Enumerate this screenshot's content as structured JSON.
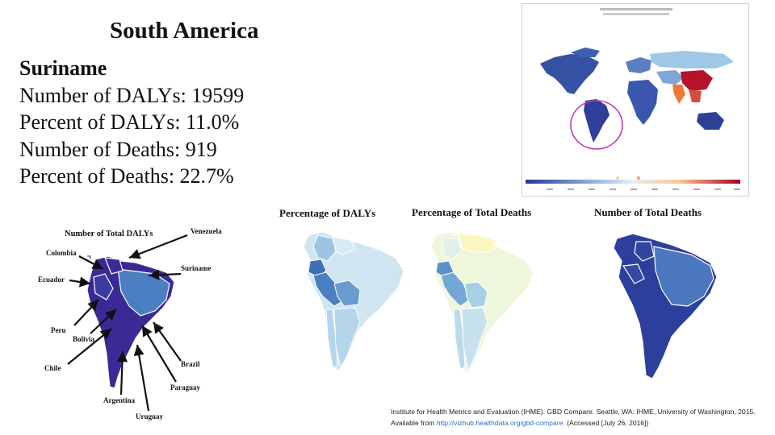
{
  "region": "South America",
  "country": {
    "name": "Suriname",
    "dalys_number_label": "Number of DALYs: 19599",
    "dalys_percent_label": "Percent of DALYs: 11.0%",
    "deaths_number_label": "Number of Deaths: 919",
    "deaths_percent_label": "Percent of Deaths: 22.7%"
  },
  "world_map": {
    "highlight_color": "#c43bb0",
    "scale_colors": [
      "#313695",
      "#4575b4",
      "#abd9e9",
      "#fdae61",
      "#a50026"
    ]
  },
  "maps": {
    "dalys_percent_title": "Percentage of DALYs",
    "deaths_percent_title": "Percentage of Total Deaths",
    "deaths_number_title": "Number of Total Deaths",
    "dalys_number_title": "Number of Total DALYs"
  },
  "callouts": {
    "venezuela": "Venezuela",
    "colombia": "Colombia",
    "suriname": "Suriname",
    "ecuador": "Ecuador",
    "peru": "Peru",
    "bolivia": "Bolivia",
    "chile": "Chile",
    "brazil": "Brazil",
    "paraguay": "Paraguay",
    "argentina": "Argentina",
    "uruguay": "Uruguay"
  },
  "citation": {
    "text": "Institute for Health Metrics and Evaluation (IHME). GBD Compare. Seattle, WA: IHME, University of Washington, 2015. Available from",
    "link": "http://vizhub.healthdata.org/gbd-compare.",
    "accessed": "(Accessed [July 26, 2016])"
  }
}
